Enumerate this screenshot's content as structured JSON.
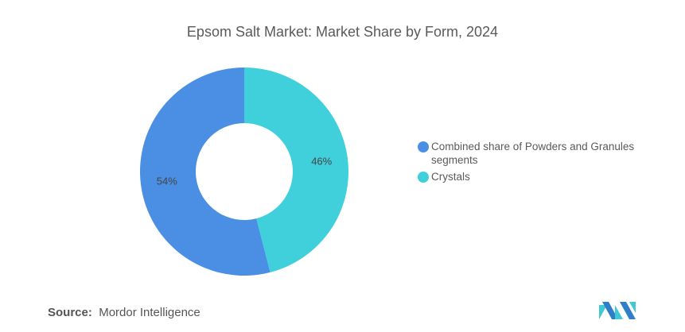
{
  "title": "Epsom Salt Market: Market Share by Form, 2024",
  "chart_data": {
    "type": "pie",
    "donut": true,
    "title": "Epsom Salt Market: Market Share by Form, 2024",
    "slices": [
      {
        "label": "Crystals",
        "value": 46,
        "data_label": "46%",
        "color": "#40d0dc"
      },
      {
        "label": "Combined share of Powders and Granules segments",
        "value": 54,
        "data_label": "54%",
        "color": "#4a8fe3"
      }
    ],
    "legend_order": [
      1,
      0
    ],
    "legend_placement": "right"
  },
  "source": {
    "label": "Source:",
    "value": "Mordor Intelligence"
  },
  "logo_text": "Mordor Intelligence"
}
